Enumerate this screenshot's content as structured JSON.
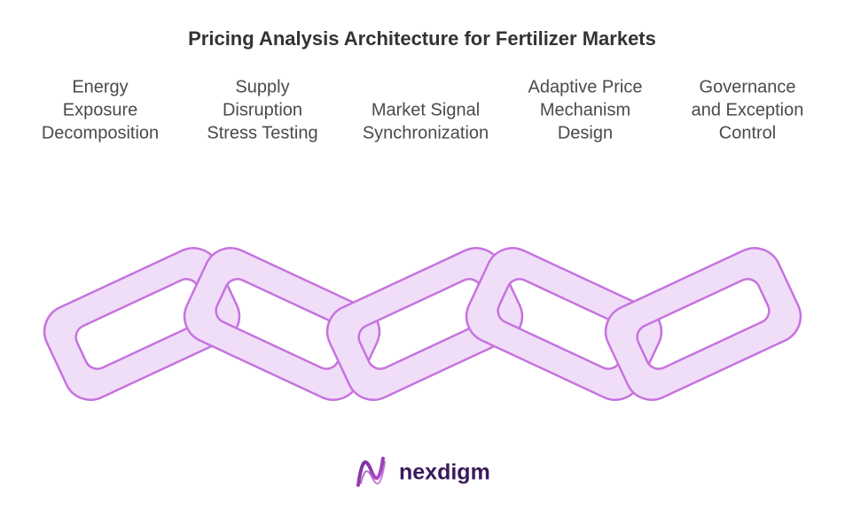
{
  "title": "Pricing Analysis Architecture for Fertilizer Markets",
  "links": [
    {
      "lines": [
        "Energy",
        "Exposure",
        "Decomposition"
      ]
    },
    {
      "lines": [
        "Supply",
        "Disruption",
        "Stress Testing"
      ]
    },
    {
      "lines": [
        "Market Signal",
        "Synchronization"
      ]
    },
    {
      "lines": [
        "Adaptive Price",
        "Mechanism",
        "Design"
      ]
    },
    {
      "lines": [
        "Governance",
        "and Exception",
        "Control"
      ]
    }
  ],
  "brand": "nexdigm"
}
